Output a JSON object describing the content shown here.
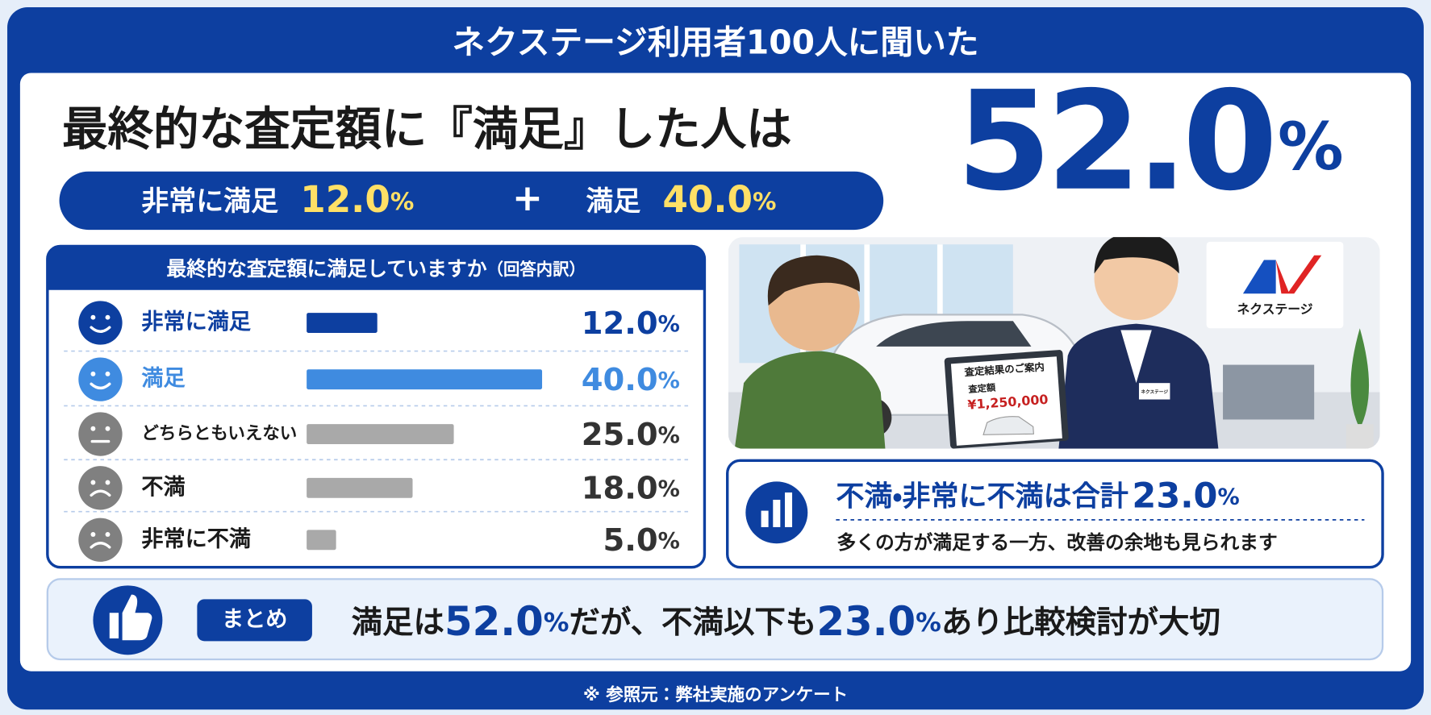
{
  "header": {
    "title": "ネクステージ利用者100人に聞いた"
  },
  "headline": {
    "text": "最終的な査定額に『満足』した人は",
    "value": "52.0",
    "unit": "%"
  },
  "breakdown_pill": {
    "items": [
      {
        "label": "非常に満足",
        "value": "12.0",
        "unit": "%"
      },
      {
        "label": "満足",
        "value": "40.0",
        "unit": "%"
      }
    ],
    "operator": "+"
  },
  "chart_data": {
    "type": "bar",
    "orientation": "horizontal",
    "title": "最終的な査定額に満足していますか",
    "subtitle": "（回答内訳）",
    "categories": [
      "非常に満足",
      "満足",
      "どちらともいえない",
      "不満",
      "非常に不満"
    ],
    "values": [
      12.0,
      40.0,
      25.0,
      18.0,
      5.0
    ],
    "value_labels": [
      "12.0",
      "40.0",
      "25.0",
      "18.0",
      "5.0"
    ],
    "unit": "%",
    "colors": [
      "#0d3fa0",
      "#3f8be0",
      "#a9a9a9",
      "#a9a9a9",
      "#a9a9a9"
    ]
  },
  "illustration": {
    "brand": "ネクステージ",
    "document_title": "査定結果のご案内",
    "document_label": "査定額",
    "document_amount": "¥1,250,000",
    "badge": "ネクステージ"
  },
  "stat_box": {
    "text": "不満・非常に不満は合計",
    "value": "23.0",
    "unit": "%",
    "note": "多くの方が満足する一方、改善の余地も見られます"
  },
  "summary": {
    "tag": "まとめ",
    "parts": [
      {
        "text": "満足は",
        "style": "plain"
      },
      {
        "text": "52.0",
        "style": "number"
      },
      {
        "text": "%",
        "style": "unit"
      },
      {
        "text": "だが、不満以下も",
        "style": "plain"
      },
      {
        "text": "23.0",
        "style": "number"
      },
      {
        "text": "%",
        "style": "unit"
      },
      {
        "text": "あり比較検討が大切",
        "style": "plain"
      }
    ]
  },
  "footer": {
    "note": "※ 参照元：弊社実施のアンケート"
  }
}
